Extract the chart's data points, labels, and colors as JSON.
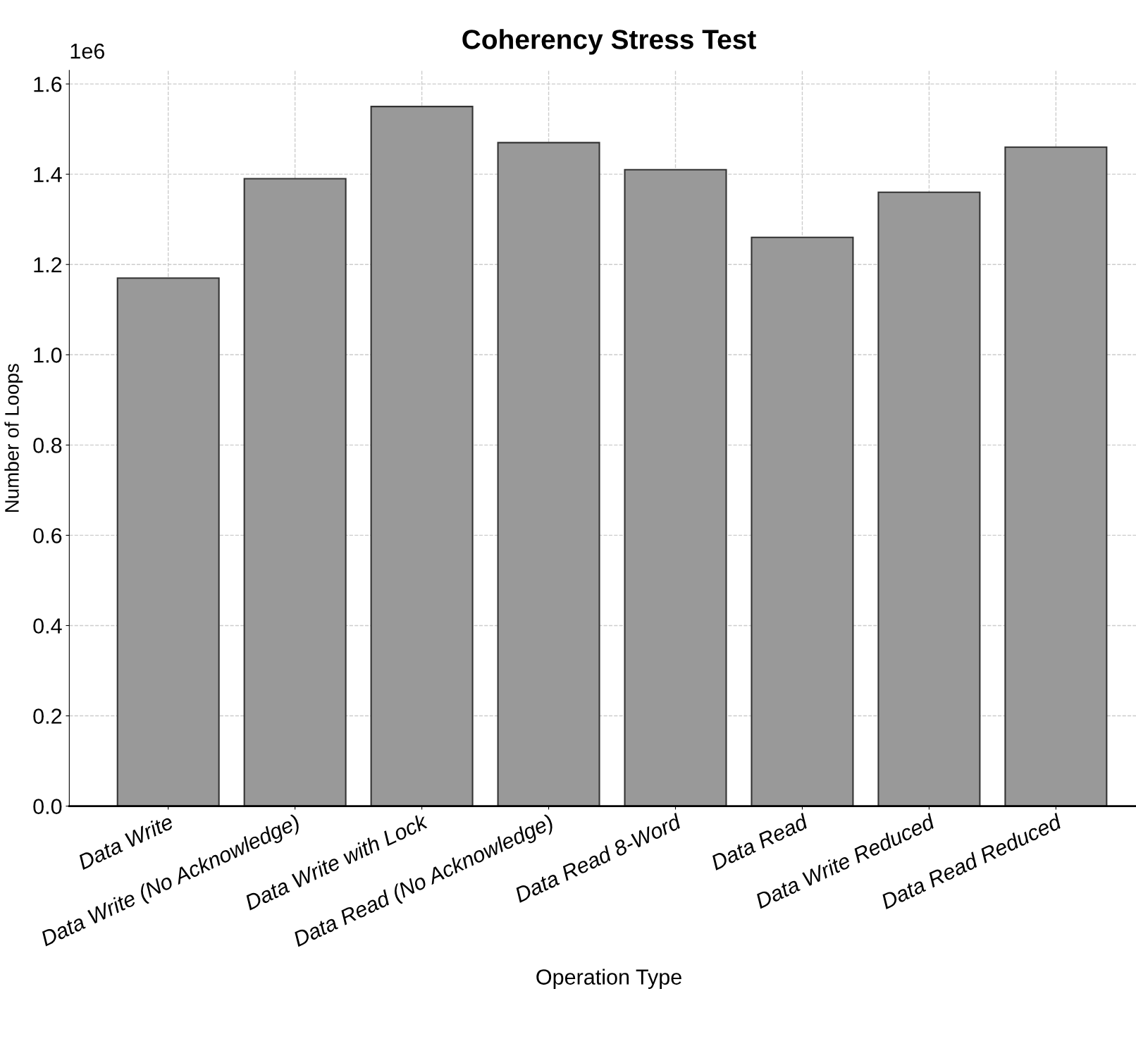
{
  "chart_data": {
    "type": "bar",
    "title": "Coherency Stress Test",
    "xlabel": "Operation Type",
    "ylabel": "Number of Loops",
    "categories": [
      "Data Write",
      "Data Write (No Acknowledge)",
      "Data Write with Lock",
      "Data Read (No Acknowledge)",
      "Data Read 8-Word",
      "Data Read",
      "Data Write Reduced",
      "Data Read Reduced"
    ],
    "values": [
      1.17,
      1.39,
      1.55,
      1.47,
      1.41,
      1.26,
      1.36,
      1.46
    ],
    "color": "#999999",
    "ylim": [
      0,
      1.63
    ],
    "yticks": [
      {
        "value": 0,
        "label": "0.0"
      },
      0.2,
      0.4,
      0.6,
      0.8,
      {
        "value": 1,
        "label": "1.0"
      },
      1.2,
      1.4,
      1.6
    ],
    "annotations": [
      "1e6"
    ],
    "grid": true
  }
}
